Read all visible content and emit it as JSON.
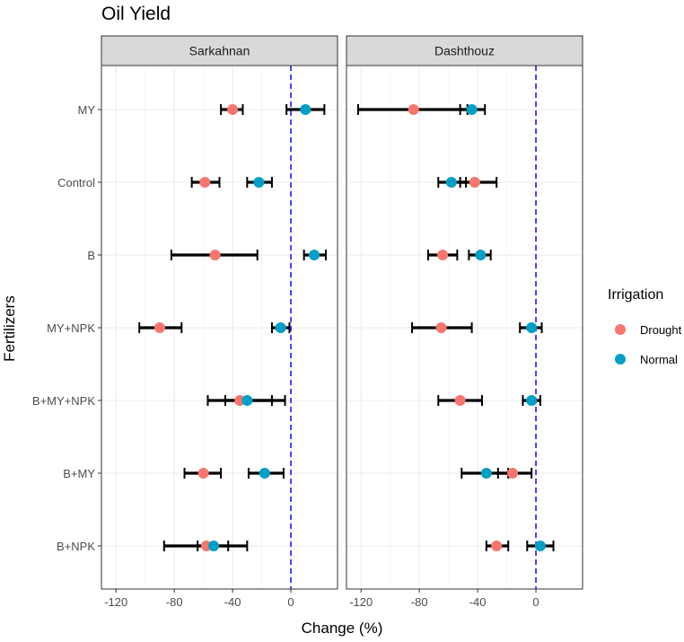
{
  "chart_data": {
    "type": "scatter",
    "title": "Oil Yield",
    "xlabel": "Change (%)",
    "ylabel": "Fertilizers",
    "xlim": [
      -130,
      32
    ],
    "xticks": [
      -120,
      -80,
      -40,
      0
    ],
    "categories": [
      "MY",
      "Control",
      "B",
      "MY+NPK",
      "B+MY+NPK",
      "B+MY",
      "B+NPK"
    ],
    "reference_line": 0,
    "legend": {
      "title": "Irrigation",
      "position": "right",
      "entries": [
        {
          "label": "Drought",
          "color": "#F8766D"
        },
        {
          "label": "Normal",
          "color": "#00A0C6"
        }
      ]
    },
    "panels": [
      {
        "name": "Sarkahnan",
        "series": [
          {
            "name": "Drought",
            "color": "#F8766D",
            "points": [
              {
                "category": "MY",
                "value": -40,
                "low": -48,
                "high": -33
              },
              {
                "category": "Control",
                "value": -59,
                "low": -68,
                "high": -49
              },
              {
                "category": "B",
                "value": -52,
                "low": -82,
                "high": -23
              },
              {
                "category": "MY+NPK",
                "value": -90,
                "low": -104,
                "high": -75
              },
              {
                "category": "B+MY+NPK",
                "value": -35,
                "low": -57,
                "high": -13
              },
              {
                "category": "B+MY",
                "value": -60,
                "low": -73,
                "high": -48
              },
              {
                "category": "B+NPK",
                "value": -58,
                "low": -87,
                "high": -30
              }
            ]
          },
          {
            "name": "Normal",
            "color": "#00A0C6",
            "points": [
              {
                "category": "MY",
                "value": 10,
                "low": -3,
                "high": 23
              },
              {
                "category": "Control",
                "value": -22,
                "low": -30,
                "high": -13
              },
              {
                "category": "B",
                "value": 16,
                "low": 9,
                "high": 24
              },
              {
                "category": "MY+NPK",
                "value": -7,
                "low": -13,
                "high": -1
              },
              {
                "category": "B+MY+NPK",
                "value": -30,
                "low": -45,
                "high": -4
              },
              {
                "category": "B+MY",
                "value": -18,
                "low": -29,
                "high": -5
              },
              {
                "category": "B+NPK",
                "value": -53,
                "low": -64,
                "high": -43
              }
            ]
          }
        ]
      },
      {
        "name": "Dashthouz",
        "series": [
          {
            "name": "Drought",
            "color": "#F8766D",
            "points": [
              {
                "category": "MY",
                "value": -84,
                "low": -122,
                "high": -47
              },
              {
                "category": "Control",
                "value": -42,
                "low": -52,
                "high": -27
              },
              {
                "category": "B",
                "value": -64,
                "low": -74,
                "high": -54
              },
              {
                "category": "MY+NPK",
                "value": -65,
                "low": -85,
                "high": -44
              },
              {
                "category": "B+MY+NPK",
                "value": -52,
                "low": -67,
                "high": -37
              },
              {
                "category": "B+MY",
                "value": -16,
                "low": -26,
                "high": -3
              },
              {
                "category": "B+NPK",
                "value": -27,
                "low": -34,
                "high": -19
              }
            ]
          },
          {
            "name": "Normal",
            "color": "#00A0C6",
            "points": [
              {
                "category": "MY",
                "value": -44,
                "low": -52,
                "high": -35
              },
              {
                "category": "Control",
                "value": -58,
                "low": -67,
                "high": -48
              },
              {
                "category": "B",
                "value": -38,
                "low": -46,
                "high": -31
              },
              {
                "category": "MY+NPK",
                "value": -3,
                "low": -11,
                "high": 4
              },
              {
                "category": "B+MY+NPK",
                "value": -3,
                "low": -9,
                "high": 3
              },
              {
                "category": "B+MY",
                "value": -34,
                "low": -51,
                "high": -19
              },
              {
                "category": "B+NPK",
                "value": 3,
                "low": -6,
                "high": 12
              }
            ]
          }
        ]
      }
    ]
  }
}
